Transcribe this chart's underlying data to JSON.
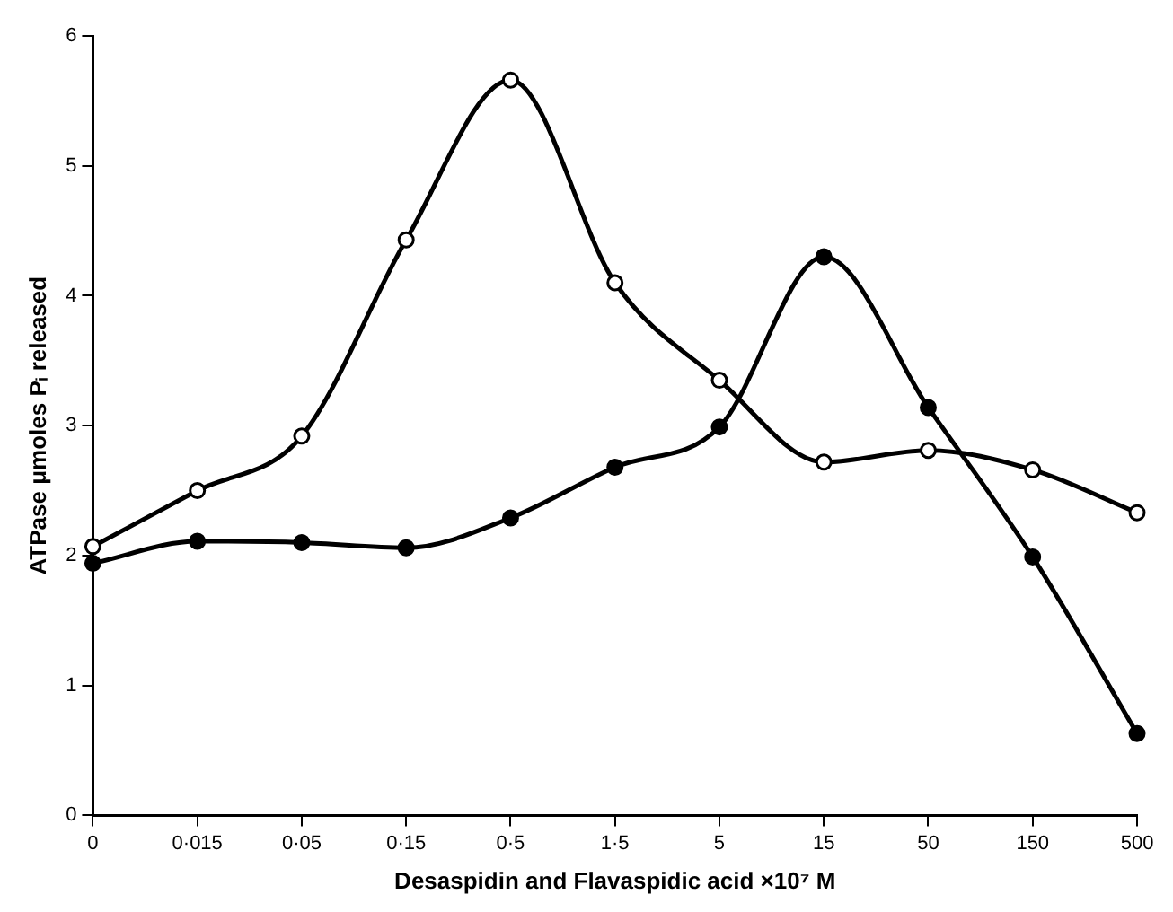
{
  "chart_data": {
    "type": "line",
    "xlabel": "Desaspidin and Flavaspidic acid ×10⁷ M",
    "ylabel": "ATPase μmoles Pᵢ released",
    "categories": [
      "0",
      "0·015",
      "0·05",
      "0·15",
      "0·5",
      "1·5",
      "5",
      "15",
      "50",
      "150",
      "500"
    ],
    "series": [
      {
        "color": "#000000",
        "values": [
          2.07,
          2.5,
          2.92,
          4.43,
          5.66,
          4.1,
          3.35,
          2.72,
          2.81,
          2.66,
          2.33
        ]
      },
      {
        "color": "#000000",
        "values": [
          1.94,
          2.11,
          2.1,
          2.06,
          2.29,
          2.68,
          2.99,
          4.3,
          3.14,
          1.99,
          0.63
        ]
      }
    ],
    "ylim": [
      0,
      6
    ],
    "yticks": [
      0,
      1,
      2,
      3,
      4,
      5,
      6
    ],
    "grid": false,
    "legend": false,
    "marker": "circle",
    "line_style": "solid"
  }
}
